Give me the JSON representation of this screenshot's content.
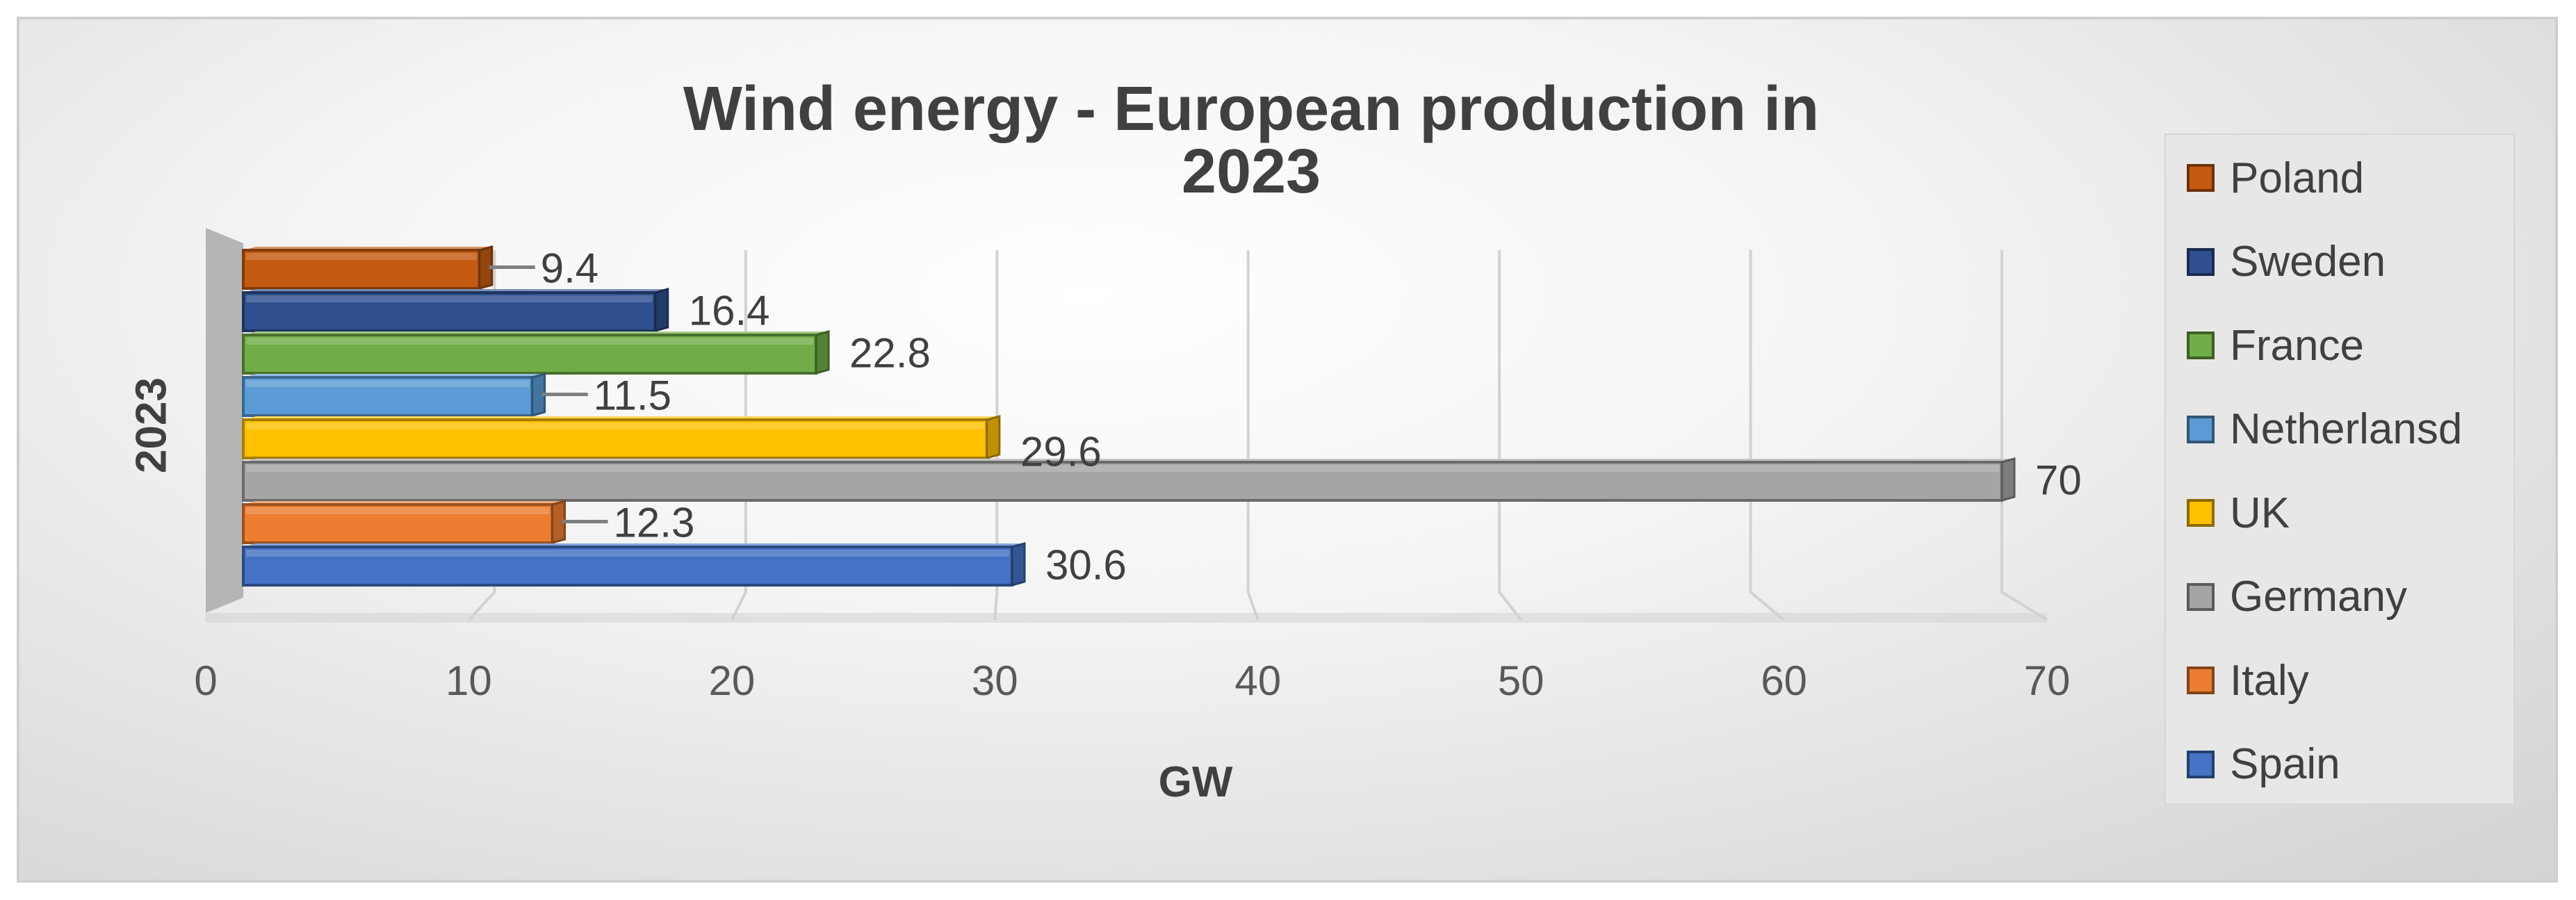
{
  "chart_data": {
    "type": "bar",
    "orientation": "horizontal",
    "style": "3d-clustered",
    "title": "Wind energy - European production in 2023",
    "xlabel": "GW",
    "ylabel": "",
    "categories": [
      "2023"
    ],
    "xlim": [
      0,
      70
    ],
    "xticks": [
      "0",
      "10",
      "20",
      "30",
      "40",
      "50",
      "60",
      "70"
    ],
    "grid": true,
    "legend_position": "right",
    "series": [
      {
        "name": "Poland",
        "values": [
          9.4
        ],
        "label": "9.4",
        "color": "#c55a11"
      },
      {
        "name": "Sweden",
        "values": [
          16.4
        ],
        "label": "16.4",
        "color": "#2f4f8f"
      },
      {
        "name": "France",
        "values": [
          22.8
        ],
        "label": "22.8",
        "color": "#70ad47"
      },
      {
        "name": "Netherlansd",
        "values": [
          11.5
        ],
        "label": "11.5",
        "color": "#5b9bd5"
      },
      {
        "name": "UK",
        "values": [
          29.6
        ],
        "label": "29.6",
        "color": "#ffc000"
      },
      {
        "name": "Germany",
        "values": [
          70
        ],
        "label": "70",
        "color": "#a5a5a5"
      },
      {
        "name": "Italy",
        "values": [
          12.3
        ],
        "label": "12.3",
        "color": "#ed7d31"
      },
      {
        "name": "Spain",
        "values": [
          30.6
        ],
        "label": "30.6",
        "color": "#4472c4"
      }
    ]
  }
}
